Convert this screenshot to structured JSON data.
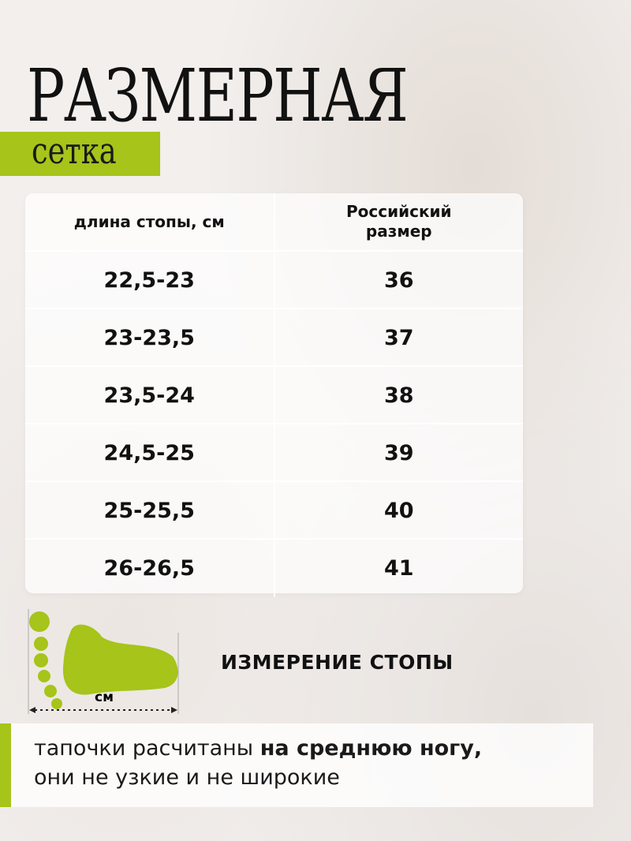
{
  "title": "РАЗМЕРНАЯ",
  "subtitle": "сетка",
  "accent_color": "#a6c41a",
  "table": {
    "headers": [
      "длина стопы, см",
      "Российский размер"
    ],
    "rows": [
      [
        "22,5-23",
        "36"
      ],
      [
        "23-23,5",
        "37"
      ],
      [
        "23,5-24",
        "38"
      ],
      [
        "24,5-25",
        "39"
      ],
      [
        "25-25,5",
        "40"
      ],
      [
        "26-26,5",
        "41"
      ]
    ]
  },
  "foot_diagram": {
    "icon": "foot-icon",
    "unit_label": "см"
  },
  "measure_label": "ИЗМЕРЕНИЕ СТОПЫ",
  "note": {
    "text_regular": "тапочки расчитаны ",
    "text_bold": "на среднюю ногу,",
    "text_line2": "они не узкие и не широкие"
  }
}
